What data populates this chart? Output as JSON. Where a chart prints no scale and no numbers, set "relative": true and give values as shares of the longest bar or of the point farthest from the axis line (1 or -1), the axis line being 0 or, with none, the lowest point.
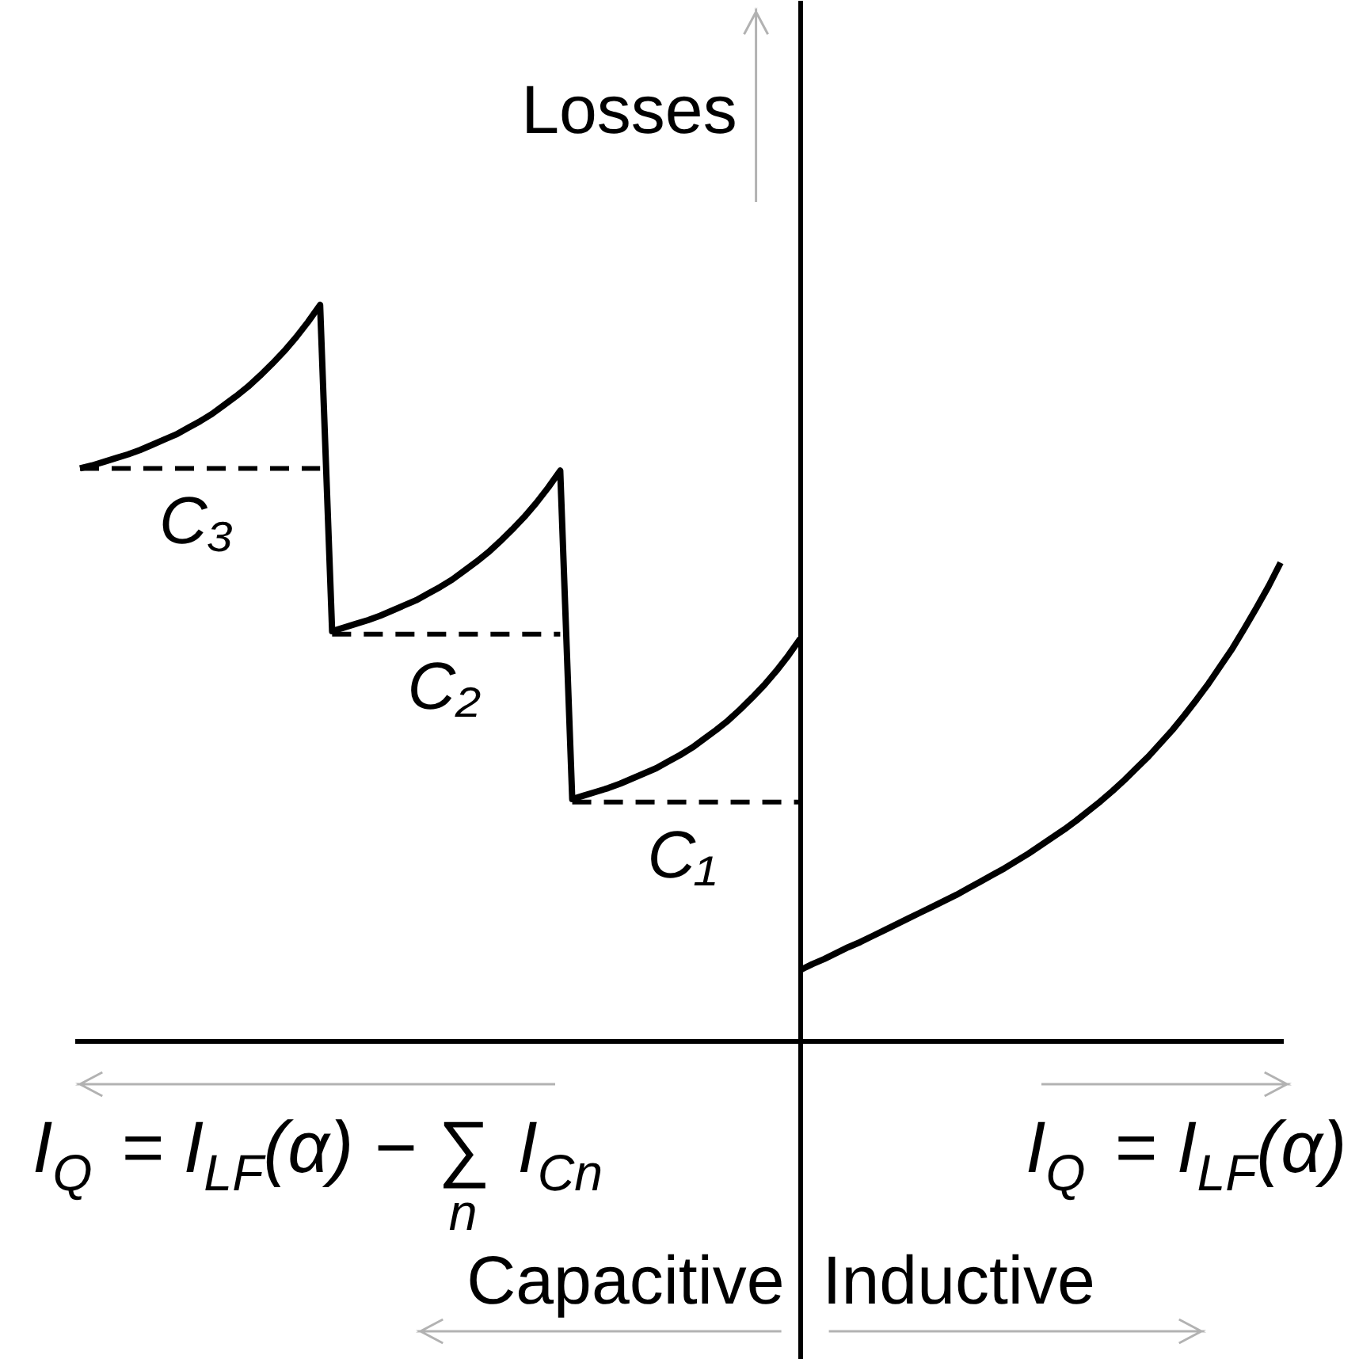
{
  "chart_data": {
    "type": "line",
    "relative": true,
    "ylabel": "Losses",
    "annotations": [
      "I$_{Q}$ = I$_{LF}$(α) − ∑$_{n}$ I$_{Cn}$",
      "I$_{Q}$ = I$_{LF}$(α)",
      "Capacitive",
      "Inductive"
    ],
    "categories": [
      null,
      null,
      null,
      null,
      null,
      null,
      null,
      null,
      null,
      null,
      null,
      null,
      null,
      null,
      null,
      null,
      null,
      null,
      null,
      null,
      null,
      null,
      null,
      null,
      null,
      null,
      null,
      null,
      null,
      null,
      null,
      null,
      null,
      null,
      null,
      null,
      null,
      null,
      null,
      null,
      null,
      null,
      null,
      null,
      null,
      null,
      null,
      null,
      null,
      null,
      null,
      null,
      null,
      null,
      null,
      null,
      null,
      null,
      null,
      null,
      null,
      null,
      null,
      null,
      null,
      null,
      null,
      null,
      null,
      null,
      null,
      null,
      null,
      null,
      null,
      null,
      null,
      null,
      null,
      null,
      null,
      null,
      null,
      null,
      null,
      null,
      null,
      null,
      null,
      null,
      null,
      null,
      null,
      null,
      null,
      null,
      null,
      null,
      null,
      null,
      null
    ],
    "series": [
      {
        "color": "#000000",
        "values": [
          0.778,
          0.782,
          0.787,
          0.792,
          0.797,
          0.803,
          0.81,
          0.817,
          0.824,
          0.833,
          0.842,
          0.852,
          0.864,
          0.876,
          0.889,
          0.904,
          0.92,
          0.937,
          0.956,
          0.977,
          1,
          0.557,
          0.562,
          0.567,
          0.572,
          0.578,
          0.585,
          0.592,
          0.599,
          0.608,
          0.617,
          0.627,
          0.639,
          0.651,
          0.664,
          0.679,
          0.695,
          0.712,
          0.731,
          0.752,
          0.775,
          0.329,
          0.334,
          0.339,
          0.344,
          0.35,
          0.357,
          0.364,
          0.371,
          0.38,
          0.389,
          0.399,
          0.411,
          0.423,
          0.436,
          0.451,
          0.467,
          0.484,
          0.503,
          0.524,
          0.547,
          null,
          null,
          null,
          null,
          null,
          null,
          null,
          null,
          null,
          null,
          null,
          null,
          null,
          null,
          null,
          null,
          null,
          null,
          null,
          null,
          null,
          null,
          null,
          null,
          null,
          null,
          null,
          null,
          null,
          null,
          null,
          null,
          null,
          null,
          null,
          null,
          null,
          null,
          null,
          null
        ]
      },
      {
        "color": "#000000",
        "values": [
          null,
          null,
          null,
          null,
          null,
          null,
          null,
          null,
          null,
          null,
          null,
          null,
          null,
          null,
          null,
          null,
          null,
          null,
          null,
          null,
          null,
          null,
          null,
          null,
          null,
          null,
          null,
          null,
          null,
          null,
          null,
          null,
          null,
          null,
          null,
          null,
          null,
          null,
          null,
          null,
          null,
          null,
          null,
          null,
          null,
          null,
          null,
          null,
          null,
          null,
          null,
          null,
          null,
          null,
          null,
          null,
          null,
          null,
          null,
          null,
          0.097,
          0.105,
          0.112,
          0.12,
          0.128,
          0.135,
          0.143,
          0.151,
          0.159,
          0.167,
          0.175,
          0.183,
          0.191,
          0.199,
          0.208,
          0.217,
          0.226,
          0.235,
          0.245,
          0.255,
          0.266,
          0.277,
          0.288,
          0.3,
          0.313,
          0.326,
          0.34,
          0.355,
          0.371,
          0.387,
          0.405,
          0.423,
          0.443,
          0.464,
          0.486,
          0.51,
          0.534,
          0.561,
          0.589,
          0.618,
          0.65
        ]
      },
      {
        "name": "C₃",
        "color": "#000000",
        "line_style": "dashed",
        "values": [
          0.778,
          0.778,
          0.778,
          0.778,
          0.778,
          0.778,
          0.778,
          0.778,
          0.778,
          0.778,
          0.778,
          0.778,
          0.778,
          0.778,
          0.778,
          0.778,
          0.778,
          0.778,
          0.778,
          0.778,
          0.778,
          null,
          null,
          null,
          null,
          null,
          null,
          null,
          null,
          null,
          null,
          null,
          null,
          null,
          null,
          null,
          null,
          null,
          null,
          null,
          null,
          null,
          null,
          null,
          null,
          null,
          null,
          null,
          null,
          null,
          null,
          null,
          null,
          null,
          null,
          null,
          null,
          null,
          null,
          null,
          null,
          null,
          null,
          null,
          null,
          null,
          null,
          null,
          null,
          null,
          null,
          null,
          null,
          null,
          null,
          null,
          null,
          null,
          null,
          null,
          null,
          null,
          null,
          null,
          null,
          null,
          null,
          null,
          null,
          null,
          null,
          null,
          null,
          null,
          null,
          null,
          null,
          null,
          null,
          null,
          null
        ]
      },
      {
        "name": "C₂",
        "color": "#000000",
        "line_style": "dashed",
        "values": [
          null,
          null,
          null,
          null,
          null,
          null,
          null,
          null,
          null,
          null,
          null,
          null,
          null,
          null,
          null,
          null,
          null,
          null,
          null,
          null,
          null,
          0.553,
          0.553,
          0.553,
          0.553,
          0.553,
          0.553,
          0.553,
          0.553,
          0.553,
          0.553,
          0.553,
          0.553,
          0.553,
          0.553,
          0.553,
          0.553,
          0.553,
          0.553,
          0.553,
          0.553,
          null,
          null,
          null,
          null,
          null,
          null,
          null,
          null,
          null,
          null,
          null,
          null,
          null,
          null,
          null,
          null,
          null,
          null,
          null,
          null,
          null,
          null,
          null,
          null,
          null,
          null,
          null,
          null,
          null,
          null,
          null,
          null,
          null,
          null,
          null,
          null,
          null,
          null,
          null,
          null,
          null,
          null,
          null,
          null,
          null,
          null,
          null,
          null,
          null,
          null,
          null,
          null,
          null,
          null,
          null,
          null,
          null,
          null,
          null,
          null
        ]
      },
      {
        "name": "C₁",
        "color": "#000000",
        "line_style": "dashed",
        "values": [
          null,
          null,
          null,
          null,
          null,
          null,
          null,
          null,
          null,
          null,
          null,
          null,
          null,
          null,
          null,
          null,
          null,
          null,
          null,
          null,
          null,
          null,
          null,
          null,
          null,
          null,
          null,
          null,
          null,
          null,
          null,
          null,
          null,
          null,
          null,
          null,
          null,
          null,
          null,
          null,
          null,
          0.325,
          0.325,
          0.325,
          0.325,
          0.325,
          0.325,
          0.325,
          0.325,
          0.325,
          0.325,
          0.325,
          0.325,
          0.325,
          0.325,
          0.325,
          0.325,
          0.325,
          0.325,
          0.325,
          0.325,
          null,
          null,
          null,
          null,
          null,
          null,
          null,
          null,
          null,
          null,
          null,
          null,
          null,
          null,
          null,
          null,
          null,
          null,
          null,
          null,
          null,
          null,
          null,
          null,
          null,
          null,
          null,
          null,
          null,
          null,
          null,
          null,
          null,
          null,
          null,
          null,
          null,
          null,
          null,
          null
        ]
      }
    ]
  }
}
